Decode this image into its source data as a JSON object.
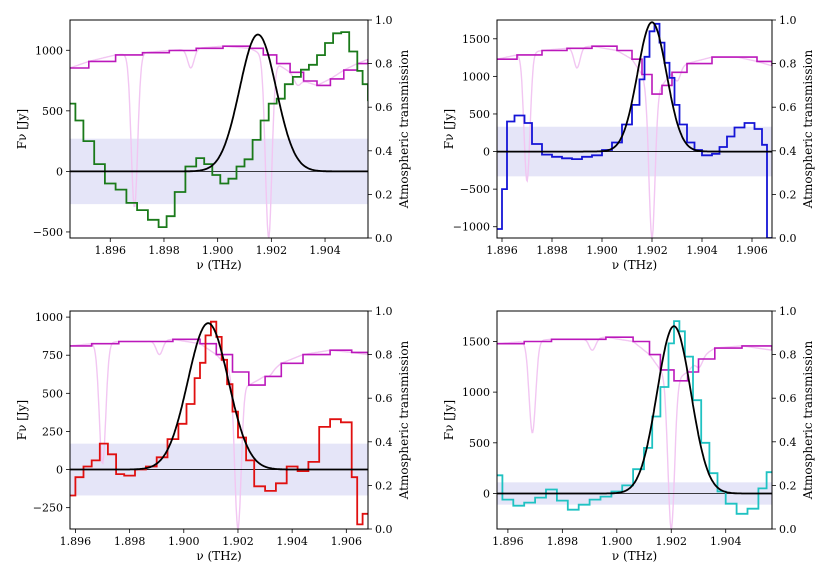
{
  "panels": [
    {
      "id": "tl",
      "xlabel": "ν (THz)",
      "ylabel": "Fν [Jy]",
      "ylabel_right": "Atmospheric transmission",
      "xlim": [
        1.8945,
        1.9056
      ],
      "ylim": [
        -550,
        1250
      ],
      "xticks": [
        1.896,
        1.898,
        1.9,
        1.902,
        1.904
      ],
      "yticks": [
        -500,
        0,
        500,
        1000
      ],
      "rlim": [
        0,
        1
      ],
      "rticks": [
        0,
        0.2,
        0.4,
        0.6,
        0.8,
        1.0
      ],
      "band": [
        -270,
        270
      ],
      "data_color": "#1a7a1a",
      "gauss": {
        "amp": 1130,
        "center": 1.9015,
        "sigma": 0.00068
      },
      "spectrum_steps": [
        [
          1.8945,
          560
        ],
        [
          1.8947,
          420
        ],
        [
          1.895,
          250
        ],
        [
          1.8954,
          60
        ],
        [
          1.8958,
          -100
        ],
        [
          1.8962,
          -150
        ],
        [
          1.8966,
          -260
        ],
        [
          1.897,
          -320
        ],
        [
          1.8974,
          -400
        ],
        [
          1.8978,
          -460
        ],
        [
          1.8981,
          -370
        ],
        [
          1.8984,
          -170
        ],
        [
          1.8988,
          40
        ],
        [
          1.8992,
          110
        ],
        [
          1.8995,
          60
        ],
        [
          1.8998,
          -30
        ],
        [
          1.9001,
          -100
        ],
        [
          1.9004,
          -60
        ],
        [
          1.9007,
          40
        ],
        [
          1.901,
          100
        ],
        [
          1.9013,
          260
        ],
        [
          1.9016,
          420
        ],
        [
          1.9019,
          560
        ],
        [
          1.9022,
          600
        ],
        [
          1.9025,
          720
        ],
        [
          1.9028,
          780
        ],
        [
          1.9031,
          840
        ],
        [
          1.9034,
          880
        ],
        [
          1.9037,
          960
        ],
        [
          1.904,
          1060
        ],
        [
          1.9043,
          1140
        ],
        [
          1.9046,
          1150
        ],
        [
          1.9049,
          990
        ],
        [
          1.9052,
          830
        ],
        [
          1.9054,
          720
        ],
        [
          1.9056,
          580
        ]
      ],
      "atm_steps": [
        [
          1.8945,
          0.78
        ],
        [
          1.8952,
          0.81
        ],
        [
          1.8962,
          0.84
        ],
        [
          1.8972,
          0.85
        ],
        [
          1.8982,
          0.86
        ],
        [
          1.8992,
          0.87
        ],
        [
          1.9002,
          0.88
        ],
        [
          1.9012,
          0.87
        ],
        [
          1.9017,
          0.84
        ],
        [
          1.9022,
          0.8
        ],
        [
          1.9027,
          0.76
        ],
        [
          1.9032,
          0.72
        ],
        [
          1.9037,
          0.7
        ],
        [
          1.9042,
          0.73
        ],
        [
          1.9047,
          0.77
        ],
        [
          1.9052,
          0.8
        ],
        [
          1.9056,
          0.82
        ]
      ],
      "atm_dips": [
        [
          1.8969,
          0.14
        ],
        [
          1.899,
          0.78
        ],
        [
          1.9019,
          0.0
        ],
        [
          1.903,
          0.7
        ]
      ]
    },
    {
      "id": "tr",
      "xlabel": "ν (THz)",
      "ylabel": "Fν [Jy]",
      "ylabel_right": "Atmospheric transmission",
      "xlim": [
        1.8958,
        1.9068
      ],
      "ylim": [
        -1150,
        1750
      ],
      "xticks": [
        1.896,
        1.898,
        1.9,
        1.902,
        1.904,
        1.906
      ],
      "yticks": [
        -1000,
        -500,
        0,
        500,
        1000,
        1500
      ],
      "rlim": [
        0,
        1
      ],
      "rticks": [
        0,
        0.2,
        0.4,
        0.6,
        0.8,
        1.0
      ],
      "band": [
        -330,
        330
      ],
      "data_color": "#1414d6",
      "gauss": {
        "amp": 1720,
        "center": 1.902,
        "sigma": 0.00058
      },
      "spectrum_steps": [
        [
          1.8958,
          -1030
        ],
        [
          1.896,
          -500
        ],
        [
          1.8962,
          400
        ],
        [
          1.8965,
          480
        ],
        [
          1.8969,
          380
        ],
        [
          1.8972,
          100
        ],
        [
          1.8976,
          -40
        ],
        [
          1.898,
          -70
        ],
        [
          1.8984,
          -90
        ],
        [
          1.8988,
          -100
        ],
        [
          1.8992,
          -70
        ],
        [
          1.8996,
          -50
        ],
        [
          1.9,
          20
        ],
        [
          1.9004,
          120
        ],
        [
          1.9008,
          360
        ],
        [
          1.9012,
          620
        ],
        [
          1.9015,
          960
        ],
        [
          1.9017,
          1260
        ],
        [
          1.9019,
          1600
        ],
        [
          1.9021,
          1700
        ],
        [
          1.9023,
          1450
        ],
        [
          1.9025,
          1180
        ],
        [
          1.9027,
          980
        ],
        [
          1.9029,
          620
        ],
        [
          1.9031,
          360
        ],
        [
          1.9034,
          120
        ],
        [
          1.9037,
          20
        ],
        [
          1.904,
          -50
        ],
        [
          1.9044,
          -30
        ],
        [
          1.9047,
          60
        ],
        [
          1.905,
          200
        ],
        [
          1.9053,
          320
        ],
        [
          1.9057,
          380
        ],
        [
          1.9061,
          300
        ],
        [
          1.9064,
          90
        ],
        [
          1.9066,
          -1150
        ]
      ],
      "atm_steps": [
        [
          1.8958,
          0.82
        ],
        [
          1.8966,
          0.84
        ],
        [
          1.8976,
          0.86
        ],
        [
          1.8986,
          0.87
        ],
        [
          1.8996,
          0.88
        ],
        [
          1.9006,
          0.86
        ],
        [
          1.9012,
          0.82
        ],
        [
          1.9016,
          0.75
        ],
        [
          1.902,
          0.66
        ],
        [
          1.9024,
          0.7
        ],
        [
          1.9028,
          0.76
        ],
        [
          1.9034,
          0.8
        ],
        [
          1.9044,
          0.83
        ],
        [
          1.9054,
          0.83
        ],
        [
          1.9062,
          0.81
        ],
        [
          1.9068,
          0.79
        ]
      ],
      "atm_dips": [
        [
          1.897,
          0.26
        ],
        [
          1.899,
          0.78
        ],
        [
          1.902,
          0.0
        ],
        [
          1.903,
          0.72
        ]
      ]
    },
    {
      "id": "bl",
      "xlabel": "ν (THz)",
      "ylabel": "Fν [Jy]",
      "ylabel_right": "Atmospheric transmission",
      "xlim": [
        1.8958,
        1.9068
      ],
      "ylim": [
        -390,
        1040
      ],
      "xticks": [
        1.896,
        1.898,
        1.9,
        1.902,
        1.904,
        1.906
      ],
      "yticks": [
        -250,
        0,
        250,
        500,
        750,
        1000
      ],
      "rlim": [
        0,
        1
      ],
      "rticks": [
        0,
        0.2,
        0.4,
        0.6,
        0.8,
        1.0
      ],
      "band": [
        -170,
        170
      ],
      "data_color": "#e01010",
      "gauss": {
        "amp": 960,
        "center": 1.9009,
        "sigma": 0.00075
      },
      "spectrum_steps": [
        [
          1.8958,
          -170
        ],
        [
          1.896,
          -50
        ],
        [
          1.8963,
          20
        ],
        [
          1.8966,
          60
        ],
        [
          1.8969,
          170
        ],
        [
          1.8972,
          100
        ],
        [
          1.8975,
          -30
        ],
        [
          1.8978,
          -40
        ],
        [
          1.8982,
          0
        ],
        [
          1.8986,
          20
        ],
        [
          1.899,
          80
        ],
        [
          1.8994,
          200
        ],
        [
          1.8998,
          300
        ],
        [
          1.9001,
          430
        ],
        [
          1.9004,
          600
        ],
        [
          1.9006,
          700
        ],
        [
          1.9008,
          880
        ],
        [
          1.901,
          970
        ],
        [
          1.9012,
          870
        ],
        [
          1.9014,
          720
        ],
        [
          1.9016,
          560
        ],
        [
          1.9018,
          380
        ],
        [
          1.902,
          210
        ],
        [
          1.9023,
          60
        ],
        [
          1.9026,
          -110
        ],
        [
          1.903,
          -140
        ],
        [
          1.9034,
          -90
        ],
        [
          1.9038,
          20
        ],
        [
          1.9042,
          -10
        ],
        [
          1.9046,
          50
        ],
        [
          1.905,
          280
        ],
        [
          1.9054,
          330
        ],
        [
          1.9058,
          310
        ],
        [
          1.9062,
          -50
        ],
        [
          1.9064,
          -360
        ],
        [
          1.9066,
          -290
        ]
      ],
      "atm_steps": [
        [
          1.8958,
          0.84
        ],
        [
          1.8966,
          0.85
        ],
        [
          1.8976,
          0.86
        ],
        [
          1.8986,
          0.86
        ],
        [
          1.8996,
          0.87
        ],
        [
          1.9006,
          0.85
        ],
        [
          1.9012,
          0.8
        ],
        [
          1.9018,
          0.72
        ],
        [
          1.9024,
          0.66
        ],
        [
          1.903,
          0.7
        ],
        [
          1.9036,
          0.76
        ],
        [
          1.9044,
          0.8
        ],
        [
          1.9054,
          0.82
        ],
        [
          1.9062,
          0.81
        ],
        [
          1.9068,
          0.8
        ]
      ],
      "atm_dips": [
        [
          1.897,
          0.3
        ],
        [
          1.8991,
          0.8
        ],
        [
          1.902,
          0.0
        ],
        [
          1.9031,
          0.7
        ]
      ]
    },
    {
      "id": "br",
      "xlabel": "ν (THz)",
      "ylabel": "Fν [Jy]",
      "ylabel_right": "Atmospheric transmission",
      "xlim": [
        1.8956,
        1.9057
      ],
      "ylim": [
        -350,
        1800
      ],
      "xticks": [
        1.896,
        1.898,
        1.9,
        1.902,
        1.904
      ],
      "yticks": [
        0,
        500,
        1000,
        1500
      ],
      "rlim": [
        0,
        1
      ],
      "rticks": [
        0,
        0.2,
        0.4,
        0.6,
        0.8,
        1.0
      ],
      "band": [
        -110,
        110
      ],
      "data_color": "#1fc2c2",
      "gauss": {
        "amp": 1650,
        "center": 1.9021,
        "sigma": 0.00062
      },
      "spectrum_steps": [
        [
          1.8956,
          180
        ],
        [
          1.8958,
          -60
        ],
        [
          1.8962,
          -120
        ],
        [
          1.8966,
          -90
        ],
        [
          1.897,
          -40
        ],
        [
          1.8974,
          40
        ],
        [
          1.8978,
          -70
        ],
        [
          1.8982,
          -160
        ],
        [
          1.8986,
          -110
        ],
        [
          1.899,
          -60
        ],
        [
          1.8994,
          -30
        ],
        [
          1.8998,
          20
        ],
        [
          1.9002,
          80
        ],
        [
          1.9006,
          240
        ],
        [
          1.901,
          450
        ],
        [
          1.9013,
          760
        ],
        [
          1.9016,
          1050
        ],
        [
          1.9019,
          1480
        ],
        [
          1.9021,
          1700
        ],
        [
          1.9023,
          1600
        ],
        [
          1.9025,
          1350
        ],
        [
          1.9028,
          920
        ],
        [
          1.9031,
          500
        ],
        [
          1.9034,
          200
        ],
        [
          1.9037,
          20
        ],
        [
          1.904,
          -100
        ],
        [
          1.9044,
          -200
        ],
        [
          1.9048,
          -150
        ],
        [
          1.9052,
          50
        ],
        [
          1.9055,
          210
        ]
      ],
      "atm_steps": [
        [
          1.8956,
          0.85
        ],
        [
          1.8966,
          0.86
        ],
        [
          1.8976,
          0.87
        ],
        [
          1.8986,
          0.87
        ],
        [
          1.8996,
          0.88
        ],
        [
          1.9006,
          0.86
        ],
        [
          1.9012,
          0.8
        ],
        [
          1.9016,
          0.73
        ],
        [
          1.9021,
          0.68
        ],
        [
          1.9026,
          0.72
        ],
        [
          1.903,
          0.78
        ],
        [
          1.9036,
          0.83
        ],
        [
          1.9046,
          0.84
        ],
        [
          1.9057,
          0.82
        ]
      ],
      "atm_dips": [
        [
          1.8969,
          0.44
        ],
        [
          1.8991,
          0.82
        ],
        [
          1.902,
          0.0
        ],
        [
          1.903,
          0.74
        ]
      ]
    }
  ],
  "colors": {
    "atmosphere_raw": "#f2c6f2",
    "atmosphere_binned": "#bb18bb",
    "noise_band": "#dcdcf5",
    "gauss_fit": "#000000",
    "zero_line": "#000000"
  },
  "chart_data": [
    {
      "type": "line",
      "panel": "top-left",
      "title": "",
      "xlabel": "ν (THz)",
      "ylabel": "Fν [Jy]",
      "y2label": "Atmospheric transmission",
      "xlim": [
        1.8945,
        1.9056
      ],
      "ylim": [
        -550,
        1250
      ],
      "y2lim": [
        0,
        1
      ],
      "series": [
        {
          "name": "spectrum",
          "color": "#1a7a1a"
        },
        {
          "name": "gaussian fit",
          "amp": 1130,
          "center": 1.9015,
          "sigma": 0.00068
        },
        {
          "name": "atmospheric transmission"
        }
      ]
    },
    {
      "type": "line",
      "panel": "top-right",
      "title": "",
      "xlabel": "ν (THz)",
      "ylabel": "Fν [Jy]",
      "y2label": "Atmospheric transmission",
      "xlim": [
        1.8958,
        1.9068
      ],
      "ylim": [
        -1150,
        1750
      ],
      "y2lim": [
        0,
        1
      ],
      "series": [
        {
          "name": "spectrum",
          "color": "#1414d6"
        },
        {
          "name": "gaussian fit",
          "amp": 1720,
          "center": 1.902,
          "sigma": 0.00058
        },
        {
          "name": "atmospheric transmission"
        }
      ]
    },
    {
      "type": "line",
      "panel": "bottom-left",
      "title": "",
      "xlabel": "ν (THz)",
      "ylabel": "Fν [Jy]",
      "y2label": "Atmospheric transmission",
      "xlim": [
        1.8958,
        1.9068
      ],
      "ylim": [
        -390,
        1040
      ],
      "y2lim": [
        0,
        1
      ],
      "series": [
        {
          "name": "spectrum",
          "color": "#e01010"
        },
        {
          "name": "gaussian fit",
          "amp": 960,
          "center": 1.9009,
          "sigma": 0.00075
        },
        {
          "name": "atmospheric transmission"
        }
      ]
    },
    {
      "type": "line",
      "panel": "bottom-right",
      "title": "",
      "xlabel": "ν (THz)",
      "ylabel": "Fν [Jy]",
      "y2label": "Atmospheric transmission",
      "xlim": [
        1.8956,
        1.9057
      ],
      "ylim": [
        -350,
        1800
      ],
      "y2lim": [
        0,
        1
      ],
      "series": [
        {
          "name": "spectrum",
          "color": "#1fc2c2"
        },
        {
          "name": "gaussian fit",
          "amp": 1650,
          "center": 1.9021,
          "sigma": 0.00062
        },
        {
          "name": "atmospheric transmission"
        }
      ]
    }
  ]
}
